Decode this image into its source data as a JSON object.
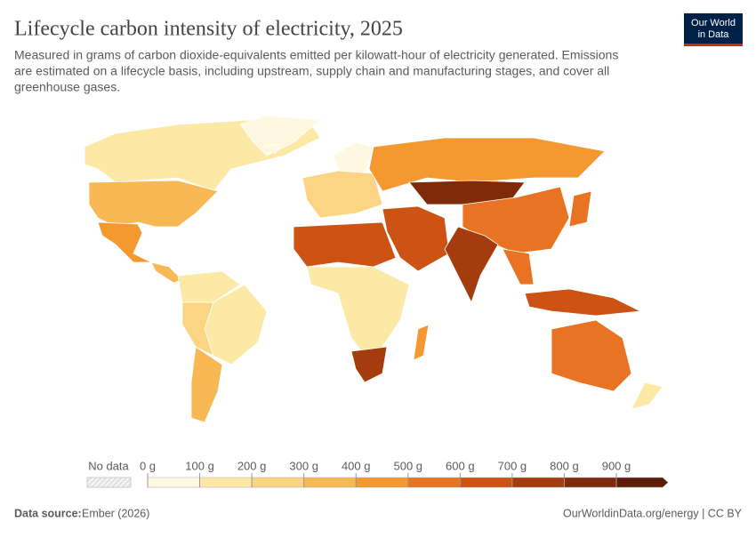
{
  "header": {
    "title": "Lifecycle carbon intensity of electricity, 2025",
    "subtitle": [
      "Measured in grams of carbon dioxide-equivalents emitted per kilowatt-hour of electricity generated. Emissions",
      "are estimated on a lifecycle basis, including upstream, supply chain and manufacturing stages, and cover all",
      "greenhouse gases."
    ],
    "logo": [
      "Our World",
      "in Data"
    ]
  },
  "chart_data": {
    "type": "choropleth",
    "values": [
      120,
      40,
      370,
      450,
      300,
      150,
      100,
      250,
      300,
      30,
      50,
      250,
      450,
      850,
      550,
      650,
      720,
      500,
      500,
      650,
      620,
      150,
      750,
      400,
      550,
      150
    ],
    "legend": {
      "no_data_label": "No data",
      "ticks": [
        {
          "value": 0,
          "label": "0 g"
        },
        {
          "value": 100,
          "label": "100 g"
        },
        {
          "value": 200,
          "label": "200 g"
        },
        {
          "value": 300,
          "label": "300 g"
        },
        {
          "value": 400,
          "label": "400 g"
        },
        {
          "value": 500,
          "label": "500 g"
        },
        {
          "value": 600,
          "label": "600 g"
        },
        {
          "value": 700,
          "label": "700 g"
        },
        {
          "value": 800,
          "label": "800 g"
        },
        {
          "value": 900,
          "label": "900 g"
        }
      ],
      "colors": [
        "#fff8e1",
        "#fde9a6",
        "#fbd583",
        "#f8b955",
        "#f5982f",
        "#e87322",
        "#cc5314",
        "#a53c0d",
        "#7f2b0a",
        "#5c1e06"
      ]
    }
  },
  "footer": {
    "source_label": "Data source:",
    "source": "Ember (2026)",
    "credit": "OurWorldinData.org/energy | CC BY"
  }
}
